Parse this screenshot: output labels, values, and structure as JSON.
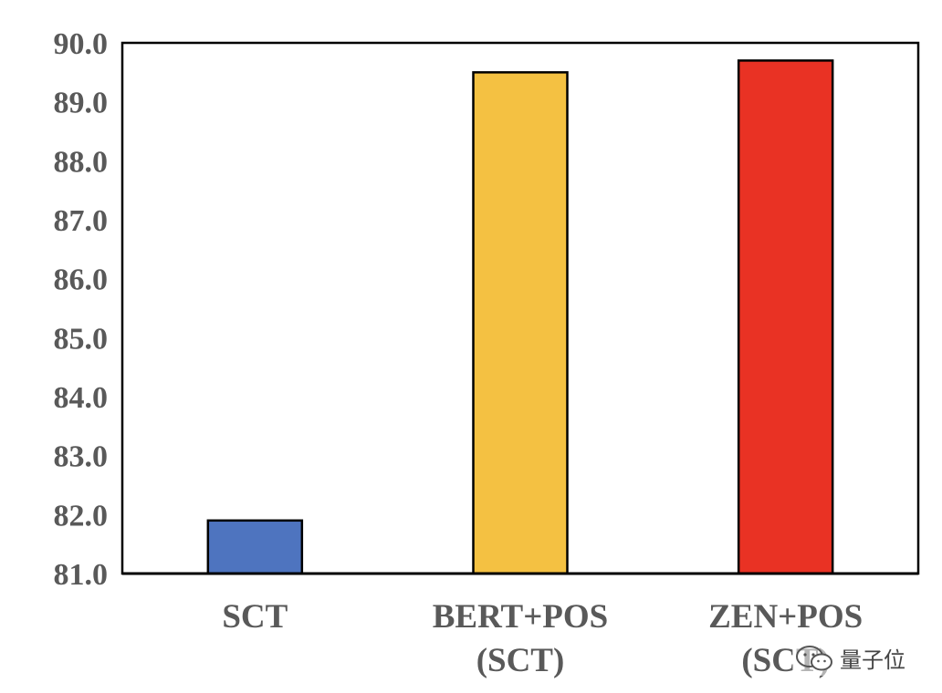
{
  "chart_data": {
    "type": "bar",
    "categories": [
      [
        "SCT"
      ],
      [
        "BERT+POS",
        "(SCT)"
      ],
      [
        "ZEN+POS",
        "(SCT)"
      ]
    ],
    "values": [
      81.9,
      89.5,
      89.7
    ],
    "colors": [
      "#4e74bf",
      "#f4c142",
      "#e93224"
    ],
    "ylim": [
      81.0,
      90.0
    ],
    "yticks": [
      "81.0",
      "82.0",
      "83.0",
      "84.0",
      "85.0",
      "86.0",
      "87.0",
      "88.0",
      "89.0",
      "90.0"
    ],
    "grid": false,
    "legend": "none"
  },
  "watermark": {
    "text": "量子位",
    "logo_icon": "wechat-icon"
  }
}
